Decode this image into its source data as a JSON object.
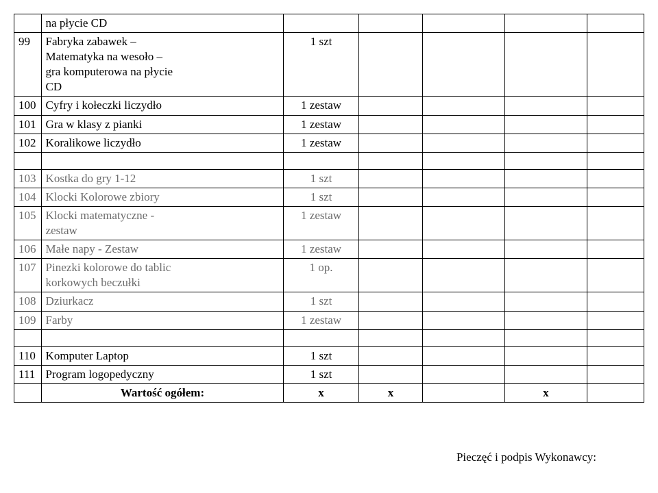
{
  "rows": [
    {
      "num": "",
      "desc": "na płycie CD",
      "qty": ""
    },
    {
      "num": "99",
      "desc": "Fabryka zabawek –\nMatematyka na wesoło –\ngra komputerowa na płycie\nCD",
      "qty": "1 szt"
    },
    {
      "num": "100",
      "desc": "Cyfry i kołeczki liczydło",
      "qty": "1 zestaw"
    },
    {
      "num": "101",
      "desc": "Gra w klasy z pianki",
      "qty": "1 zestaw"
    },
    {
      "num": "102",
      "desc": "Koralikowe liczydło",
      "qty": "1 zestaw"
    },
    {
      "type": "spacer"
    },
    {
      "num": "103",
      "desc": "Kostka do gry 1-12",
      "qty": "1 szt",
      "faded": true
    },
    {
      "num": "104",
      "desc": "Klocki Kolorowe zbiory",
      "qty": "1 szt",
      "faded": true
    },
    {
      "num": "105",
      "desc": "Klocki matematyczne -\nzestaw",
      "qty": "1 zestaw",
      "faded": true
    },
    {
      "num": "106",
      "desc": "Małe napy - Zestaw",
      "qty": "1 zestaw",
      "faded": true
    },
    {
      "num": "107",
      "desc": "Pinezki kolorowe do tablic\nkorkowych beczułki",
      "qty": "1 op.",
      "faded": true
    },
    {
      "num": "108",
      "desc": "Dziurkacz",
      "qty": "1 szt",
      "faded": true
    },
    {
      "num": "109",
      "desc": "Farby",
      "qty": "1 zestaw",
      "faded": true
    },
    {
      "type": "spacer"
    },
    {
      "num": "110",
      "desc": "Komputer Laptop",
      "qty": "1 szt"
    },
    {
      "num": "111",
      "desc": "Program  logopedyczny",
      "qty": "1 szt"
    },
    {
      "num": "",
      "desc": "Wartość ogółem:",
      "qty": "x",
      "c4": "x",
      "c6": "x",
      "bold": true
    }
  ],
  "footer": "Pieczęć i podpis Wykonawcy:"
}
